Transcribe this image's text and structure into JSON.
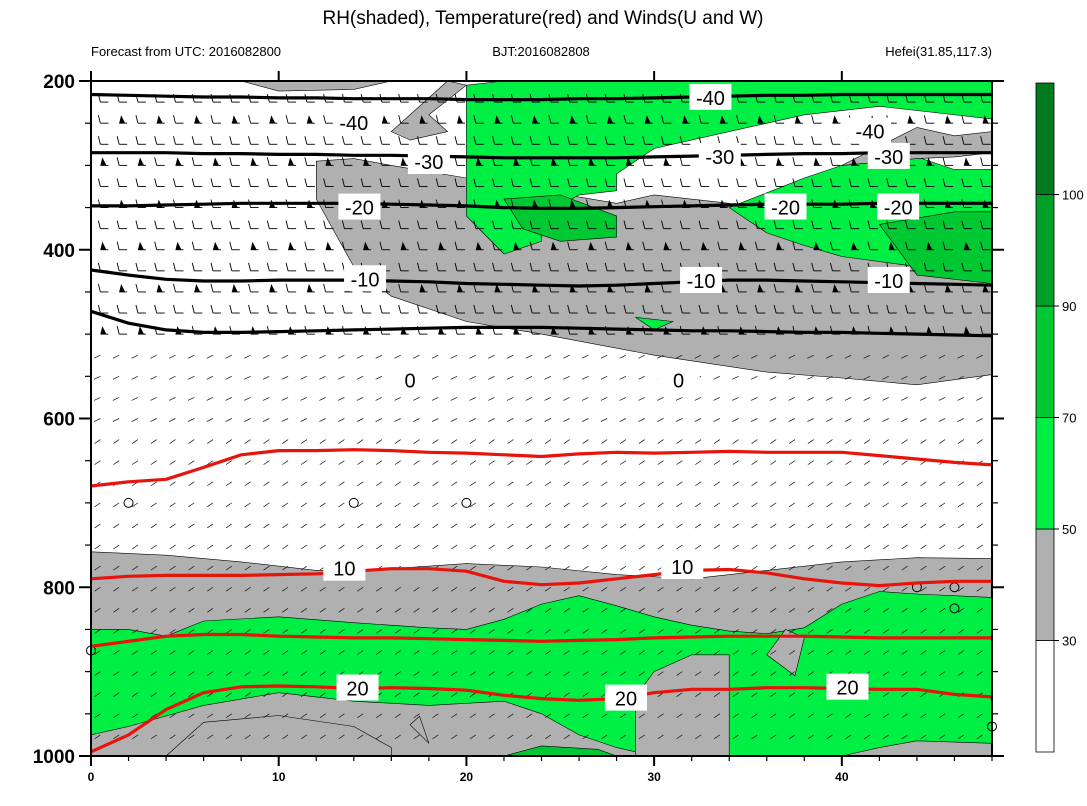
{
  "chart_data": {
    "type": "contour",
    "title": "RH(shaded), Temperature(red) and Winds(U and W)",
    "subtitle_left": "Forecast from UTC: 2016082800",
    "subtitle_center": "BJT:2016082808",
    "subtitle_right": "Hefei(31.85,117.3)",
    "x_ticks": [
      "0",
      "10",
      "20",
      "30",
      "40"
    ],
    "x_tick_values": [
      0,
      10,
      20,
      30,
      40
    ],
    "xlim": [
      0,
      48
    ],
    "y_ticks": [
      "200",
      "400",
      "600",
      "800",
      "1000"
    ],
    "y_tick_values": [
      200,
      400,
      600,
      800,
      1000
    ],
    "ylim": [
      1000,
      200
    ],
    "wind_levels": [
      225,
      250,
      275,
      300,
      325,
      350,
      375,
      400,
      425,
      450,
      475,
      500,
      525,
      550,
      575,
      600,
      625,
      650,
      675,
      700,
      725,
      750,
      775,
      800,
      825,
      850,
      875,
      900,
      925,
      950,
      975
    ],
    "colorbar": {
      "labels": [
        "30",
        "50",
        "70",
        "90",
        "100"
      ],
      "levels": [
        30,
        50,
        70,
        90,
        100
      ],
      "colors": [
        "#ffffff",
        "#b0b0b0",
        "#00ee44",
        "#00c832",
        "#00a028",
        "#007a1e"
      ]
    },
    "colors": {
      "temperature": "#e8140c",
      "negative_isotherm": "#000000",
      "gray": "#b0b0b0",
      "green": "#00ef44",
      "dark_green": "#00c833"
    },
    "isotherms": [
      {
        "label": "-40",
        "t": [
          0,
          2,
          4,
          6,
          8,
          10,
          12,
          14,
          16,
          18,
          20,
          22,
          24,
          26,
          28,
          30,
          32,
          34,
          36,
          38,
          40,
          42,
          44,
          46,
          48
        ],
        "p": [
          216,
          217,
          218,
          219,
          219,
          220,
          220,
          221,
          221,
          221,
          222,
          222,
          222,
          221,
          221,
          220,
          219,
          218,
          217,
          217,
          216,
          216,
          216,
          216,
          216
        ],
        "color": "#000000",
        "label_at": {
          "t": 14,
          "p": 250
        }
      },
      {
        "label": "-30",
        "t": [
          0,
          2,
          4,
          6,
          8,
          10,
          12,
          14,
          16,
          18,
          20,
          22,
          24,
          26,
          28,
          30,
          32,
          34,
          36,
          38,
          40,
          42,
          44,
          46,
          48
        ],
        "p": [
          285,
          285,
          285,
          286,
          286,
          287,
          287,
          288,
          288,
          289,
          290,
          291,
          291,
          291,
          291,
          290,
          289,
          288,
          287,
          286,
          286,
          285,
          285,
          285,
          285
        ],
        "color": "#000000",
        "label_at": {
          "t": 18,
          "p": 296
        }
      },
      {
        "label": "-20",
        "t": [
          0,
          2,
          4,
          6,
          8,
          10,
          12,
          14,
          16,
          18,
          20,
          22,
          24,
          26,
          28,
          30,
          32,
          34,
          36,
          38,
          40,
          42,
          44,
          46,
          48
        ],
        "p": [
          348,
          348,
          347,
          346,
          345,
          345,
          345,
          345,
          346,
          347,
          348,
          350,
          351,
          351,
          350,
          349,
          348,
          347,
          346,
          346,
          346,
          345,
          345,
          345,
          345
        ],
        "color": "#000000",
        "label_at": {
          "t": 14.3,
          "p": 350
        }
      },
      {
        "label": "-10",
        "t": [
          0,
          2,
          4,
          6,
          8,
          10,
          12,
          14,
          16,
          18,
          20,
          22,
          24,
          26,
          28,
          30,
          32,
          34,
          36,
          38,
          40,
          42,
          44,
          46,
          48
        ],
        "p": [
          424,
          430,
          435,
          437,
          437,
          436,
          436,
          436,
          437,
          438,
          440,
          441,
          442,
          443,
          442,
          440,
          438,
          436,
          436,
          437,
          438,
          439,
          440,
          441,
          442
        ],
        "color": "#000000",
        "label_at": {
          "t": 14.6,
          "p": 435
        }
      },
      {
        "label": "0",
        "t": [
          0,
          2,
          4,
          6,
          8,
          10,
          12,
          14,
          16,
          18,
          20,
          22,
          24,
          26,
          28,
          30,
          32,
          34,
          36,
          38,
          40,
          42,
          44,
          46,
          48
        ],
        "p": [
          473,
          487,
          495,
          498,
          498,
          497,
          496,
          495,
          494,
          493,
          492,
          492,
          492,
          493,
          494,
          495,
          496,
          496,
          497,
          498,
          498,
          499,
          500,
          501,
          502
        ],
        "color": "#000000",
        "label_at": {
          "t": 17,
          "p": 555
        }
      },
      {
        "label": "",
        "t": [
          0,
          2,
          4,
          6,
          8,
          10,
          12,
          14,
          16,
          18,
          20,
          22,
          24,
          26,
          28,
          30,
          32,
          34,
          36,
          38,
          40,
          42,
          44,
          46,
          48
        ],
        "p": [
          680,
          675,
          672,
          658,
          643,
          638,
          638,
          637,
          638,
          640,
          641,
          643,
          645,
          642,
          640,
          641,
          640,
          639,
          640,
          640,
          640,
          644,
          648,
          652,
          655
        ],
        "color": "#e8140c",
        "label_at": null
      },
      {
        "label": "10",
        "t": [
          0,
          2,
          4,
          6,
          8,
          10,
          12,
          14,
          16,
          18,
          20,
          22,
          24,
          26,
          28,
          30,
          32,
          34,
          36,
          38,
          40,
          42,
          44,
          46,
          48
        ],
        "p": [
          790,
          787,
          786,
          786,
          786,
          785,
          784,
          781,
          778,
          778,
          781,
          793,
          797,
          795,
          790,
          785,
          780,
          779,
          783,
          790,
          795,
          798,
          795,
          793,
          793
        ],
        "color": "#e8140c",
        "label_at": {
          "t": 13.5,
          "p": 778
        }
      },
      {
        "label": "",
        "t": [
          0,
          2,
          4,
          6,
          8,
          10,
          12,
          14,
          16,
          18,
          20,
          22,
          24,
          26,
          28,
          30,
          32,
          34,
          36,
          38,
          40,
          42,
          44,
          46,
          48
        ],
        "p": [
          870,
          864,
          858,
          856,
          856,
          858,
          859,
          860,
          860,
          861,
          862,
          863,
          864,
          863,
          862,
          860,
          859,
          858,
          858,
          858,
          859,
          860,
          860,
          860,
          860
        ],
        "color": "#e8140c",
        "label_at": null
      },
      {
        "label": "20",
        "t": [
          0,
          2,
          4,
          6,
          8,
          10,
          12,
          14,
          16,
          18,
          20,
          22,
          24,
          26,
          28,
          30,
          32,
          34,
          36,
          38,
          40,
          42,
          44,
          46,
          48
        ],
        "p": [
          995,
          975,
          945,
          925,
          918,
          917,
          918,
          920,
          919,
          920,
          922,
          928,
          932,
          934,
          932,
          925,
          921,
          921,
          919,
          919,
          920,
          921,
          921,
          927,
          930
        ],
        "color": "#e8140c",
        "label_at": {
          "t": 14.2,
          "p": 920
        }
      }
    ]
  }
}
